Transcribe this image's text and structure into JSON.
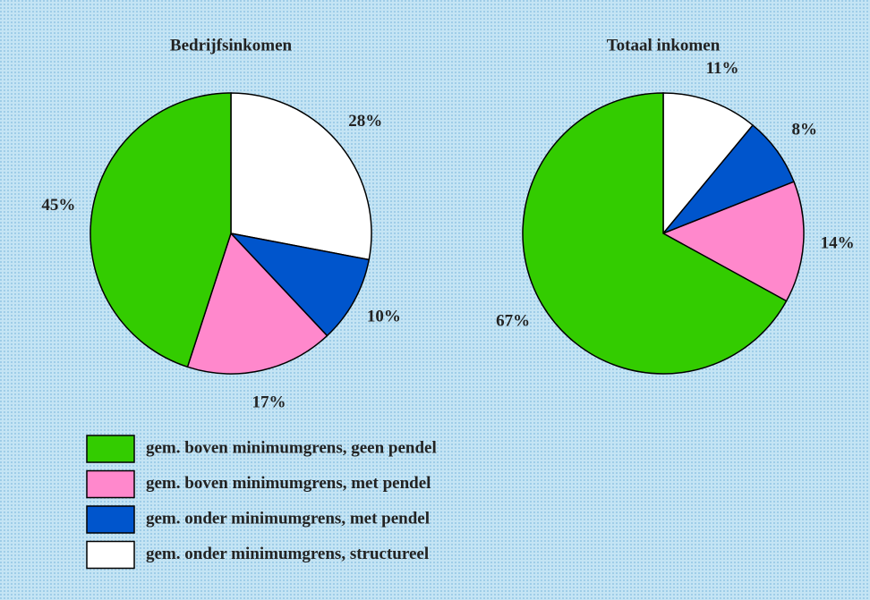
{
  "chart_data": [
    {
      "type": "pie",
      "title": "Bedrijfsinkomen",
      "values": [
        45,
        17,
        10,
        28
      ],
      "value_labels": [
        "45%",
        "17%",
        "10%",
        "28%"
      ],
      "colors": [
        "#33cc00",
        "#ff88cc",
        "#0055cc",
        "#ffffff"
      ]
    },
    {
      "type": "pie",
      "title": "Totaal inkomen",
      "values": [
        67,
        14,
        8,
        11
      ],
      "value_labels": [
        "67%",
        "14%",
        "8%",
        "11%"
      ],
      "colors": [
        "#33cc00",
        "#ff88cc",
        "#0055cc",
        "#ffffff"
      ]
    }
  ],
  "legend": {
    "labels": [
      "gem. boven minimumgrens, geen pendel",
      "gem. boven minimumgrens, met pendel",
      "gem. onder minimumgrens, met pendel",
      "gem. onder minimumgrens, structureel"
    ],
    "colors": [
      "#33cc00",
      "#ff88cc",
      "#0055cc",
      "#ffffff"
    ]
  }
}
